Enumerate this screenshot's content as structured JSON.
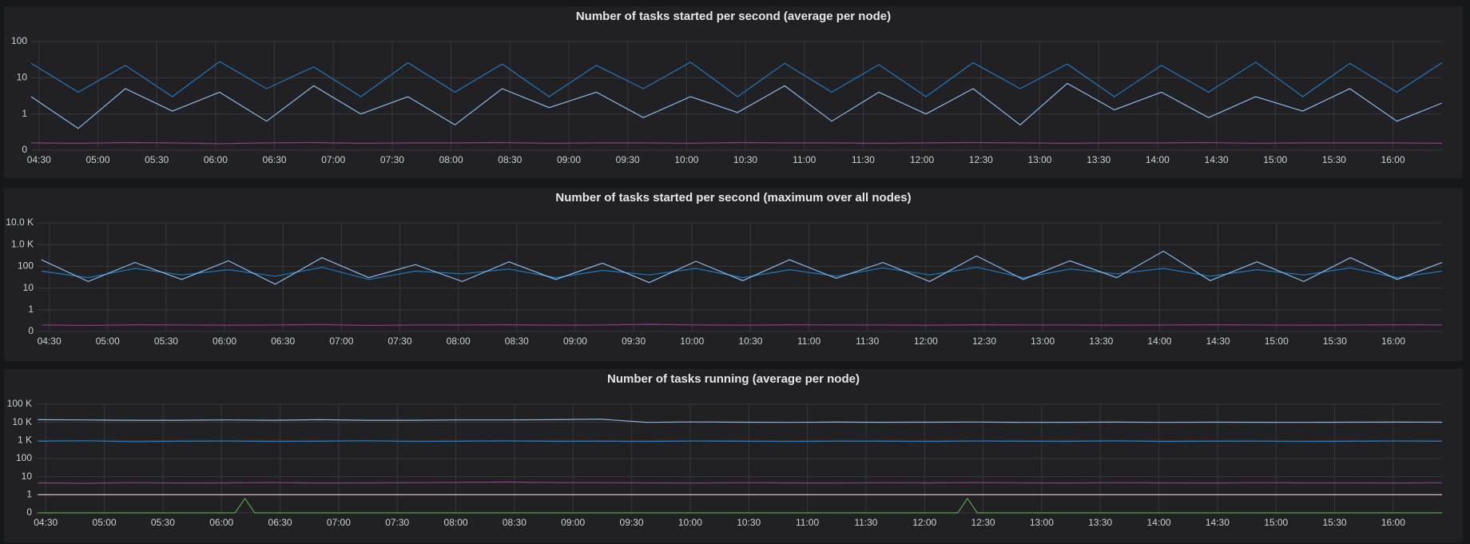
{
  "chart_data": [
    {
      "type": "line",
      "title": "Number of tasks started per second (average per node)",
      "yscale": "symlog",
      "grid": true,
      "xlim": [
        "04:26",
        "16:25"
      ],
      "xticks": [
        "04:30",
        "05:00",
        "05:30",
        "06:00",
        "06:30",
        "07:00",
        "07:30",
        "08:00",
        "08:30",
        "09:00",
        "09:30",
        "10:00",
        "10:30",
        "11:00",
        "11:30",
        "12:00",
        "12:30",
        "13:00",
        "13:30",
        "14:00",
        "14:30",
        "15:00",
        "15:30",
        "16:00"
      ],
      "ylim": [
        0,
        100
      ],
      "yticks": [
        0,
        1,
        10,
        100
      ],
      "x": [
        "04:26",
        "04:50",
        "05:14",
        "05:38",
        "06:02",
        "06:26",
        "06:50",
        "07:14",
        "07:38",
        "08:02",
        "08:26",
        "08:50",
        "09:14",
        "09:38",
        "10:02",
        "10:26",
        "10:50",
        "11:14",
        "11:38",
        "12:02",
        "12:26",
        "12:50",
        "13:14",
        "13:38",
        "14:02",
        "14:26",
        "14:50",
        "15:14",
        "15:38",
        "16:02",
        "16:25"
      ],
      "series": [
        {
          "color": "#1f78c1",
          "values": [
            25,
            4,
            22,
            3,
            28,
            5,
            20,
            3,
            26,
            4,
            24,
            3,
            22,
            5,
            27,
            3,
            25,
            4,
            23,
            3,
            26,
            5,
            24,
            3,
            22,
            4,
            27,
            3,
            25,
            4,
            26
          ]
        },
        {
          "color": "#8ab8e8",
          "values": [
            3,
            0.6,
            5,
            1.2,
            4,
            0.8,
            6,
            1,
            3,
            0.7,
            5,
            1.5,
            4,
            0.9,
            3,
            1.1,
            6,
            0.8,
            4,
            1,
            5,
            0.7,
            7,
            1.3,
            4,
            0.9,
            3,
            1.2,
            5,
            0.8,
            2
          ]
        },
        {
          "color": "#8a3f86",
          "values": [
            0.2,
            0.19,
            0.21,
            0.2,
            0.18,
            0.2,
            0.21,
            0.19,
            0.2,
            0.2,
            0.21,
            0.19,
            0.2,
            0.2,
            0.19,
            0.21,
            0.2,
            0.2,
            0.19,
            0.2,
            0.21,
            0.2,
            0.19,
            0.2,
            0.2,
            0.21,
            0.19,
            0.2,
            0.2,
            0.2,
            0.19
          ]
        }
      ]
    },
    {
      "type": "line",
      "title": "Number of tasks started per second (maximum over all nodes)",
      "yscale": "symlog",
      "grid": true,
      "xlim": [
        "04:24",
        "16:25"
      ],
      "xticks": [
        "04:30",
        "05:00",
        "05:30",
        "06:00",
        "06:30",
        "07:00",
        "07:30",
        "08:00",
        "08:30",
        "09:00",
        "09:30",
        "10:00",
        "10:30",
        "11:00",
        "11:30",
        "12:00",
        "12:30",
        "13:00",
        "13:30",
        "14:00",
        "14:30",
        "15:00",
        "15:30",
        "16:00"
      ],
      "ylim": [
        0,
        10000
      ],
      "yticks": [
        0,
        1,
        10,
        100,
        {
          "value": 1000,
          "label": "1.0 K"
        },
        {
          "value": 10000,
          "label": "10.0 K"
        }
      ],
      "x": [
        "04:26",
        "04:50",
        "05:14",
        "05:38",
        "06:02",
        "06:26",
        "06:50",
        "07:14",
        "07:38",
        "08:02",
        "08:26",
        "08:50",
        "09:14",
        "09:38",
        "10:02",
        "10:26",
        "10:50",
        "11:14",
        "11:38",
        "12:02",
        "12:26",
        "12:50",
        "13:14",
        "13:38",
        "14:02",
        "14:26",
        "14:50",
        "15:14",
        "15:38",
        "16:02",
        "16:25"
      ],
      "series": [
        {
          "color": "#1f78c1",
          "values": [
            60,
            30,
            80,
            40,
            70,
            35,
            90,
            25,
            60,
            45,
            75,
            30,
            65,
            40,
            80,
            30,
            70,
            35,
            85,
            40,
            90,
            30,
            75,
            45,
            80,
            35,
            70,
            40,
            85,
            30,
            60
          ]
        },
        {
          "color": "#8ab8e8",
          "values": [
            200,
            20,
            150,
            25,
            180,
            15,
            250,
            30,
            120,
            20,
            160,
            25,
            140,
            18,
            170,
            22,
            200,
            28,
            150,
            20,
            300,
            25,
            180,
            30,
            500,
            22,
            160,
            20,
            250,
            25,
            150
          ]
        },
        {
          "color": "#8a3f86",
          "values": [
            0.3,
            0.28,
            0.31,
            0.3,
            0.29,
            0.3,
            0.32,
            0.28,
            0.3,
            0.3,
            0.31,
            0.29,
            0.3,
            0.33,
            0.3,
            0.29,
            0.31,
            0.3,
            0.3,
            0.29,
            0.31,
            0.3,
            0.3,
            0.29,
            0.3,
            0.31,
            0.3,
            0.29,
            0.3,
            0.31,
            0.3
          ]
        }
      ]
    },
    {
      "type": "line",
      "title": "Number of tasks running (average per node)",
      "yscale": "symlog",
      "grid": true,
      "xlim": [
        "04:25",
        "16:25"
      ],
      "xticks": [
        "04:30",
        "05:00",
        "05:30",
        "06:00",
        "06:30",
        "07:00",
        "07:30",
        "08:00",
        "08:30",
        "09:00",
        "09:30",
        "10:00",
        "10:30",
        "11:00",
        "11:30",
        "12:00",
        "12:30",
        "13:00",
        "13:30",
        "14:00",
        "14:30",
        "15:00",
        "15:30",
        "16:00"
      ],
      "ylim": [
        0,
        100000
      ],
      "yticks": [
        0,
        1,
        10,
        100,
        {
          "value": 1000,
          "label": "1 K"
        },
        {
          "value": 10000,
          "label": "10 K"
        },
        {
          "value": 100000,
          "label": "100 K"
        }
      ],
      "x": [
        "04:26",
        "04:50",
        "05:14",
        "05:38",
        "06:02",
        "06:26",
        "06:50",
        "07:14",
        "07:38",
        "08:02",
        "08:26",
        "08:50",
        "09:14",
        "09:38",
        "10:02",
        "10:26",
        "10:50",
        "11:14",
        "11:38",
        "12:02",
        "12:26",
        "12:50",
        "13:14",
        "13:38",
        "14:02",
        "14:26",
        "14:50",
        "15:14",
        "15:38",
        "16:02",
        "16:25"
      ],
      "series": [
        {
          "color": "#8ab8e8",
          "values": [
            14000,
            13500,
            13000,
            13000,
            13500,
            13000,
            14000,
            13000,
            13000,
            13500,
            13500,
            14000,
            15000,
            10000,
            10500,
            10200,
            10000,
            10300,
            10100,
            10200,
            10400,
            10000,
            10100,
            10300,
            10000,
            10200,
            10100,
            10000,
            10200,
            10300,
            10200
          ]
        },
        {
          "color": "#1f78c1",
          "values": [
            900,
            950,
            850,
            900,
            920,
            880,
            900,
            950,
            870,
            900,
            930,
            890,
            900,
            880,
            920,
            900,
            870,
            910,
            900,
            880,
            920,
            900,
            890,
            930,
            880,
            900,
            910,
            870,
            900,
            920,
            900
          ]
        },
        {
          "color": "#8a3f86",
          "values": [
            4.5,
            4.3,
            4.6,
            4.4,
            4.5,
            4.7,
            4.4,
            4.5,
            4.6,
            4.8,
            5,
            4.7,
            4.6,
            4.5,
            4.4,
            4.6,
            4.5,
            4.4,
            4.6,
            4.5,
            4.7,
            4.5,
            4.4,
            4.6,
            4.5,
            4.4,
            4.6,
            4.5,
            4.5,
            4.4,
            4.6
          ]
        },
        {
          "color": "#f2c9df",
          "values": [
            1,
            1,
            1,
            1,
            1,
            1,
            1,
            1,
            1,
            1,
            1,
            1,
            1,
            1,
            1,
            1,
            1,
            1,
            1,
            1,
            1,
            1,
            1,
            1,
            1,
            1,
            1,
            1,
            1,
            1,
            1
          ]
        },
        {
          "color": "#56a64b",
          "x": [
            "04:26",
            "06:07",
            "06:12",
            "06:17",
            "12:17",
            "12:22",
            "12:27",
            "16:25"
          ],
          "values": [
            0,
            0,
            0.8,
            0,
            0,
            0.8,
            0,
            0
          ]
        }
      ]
    }
  ]
}
